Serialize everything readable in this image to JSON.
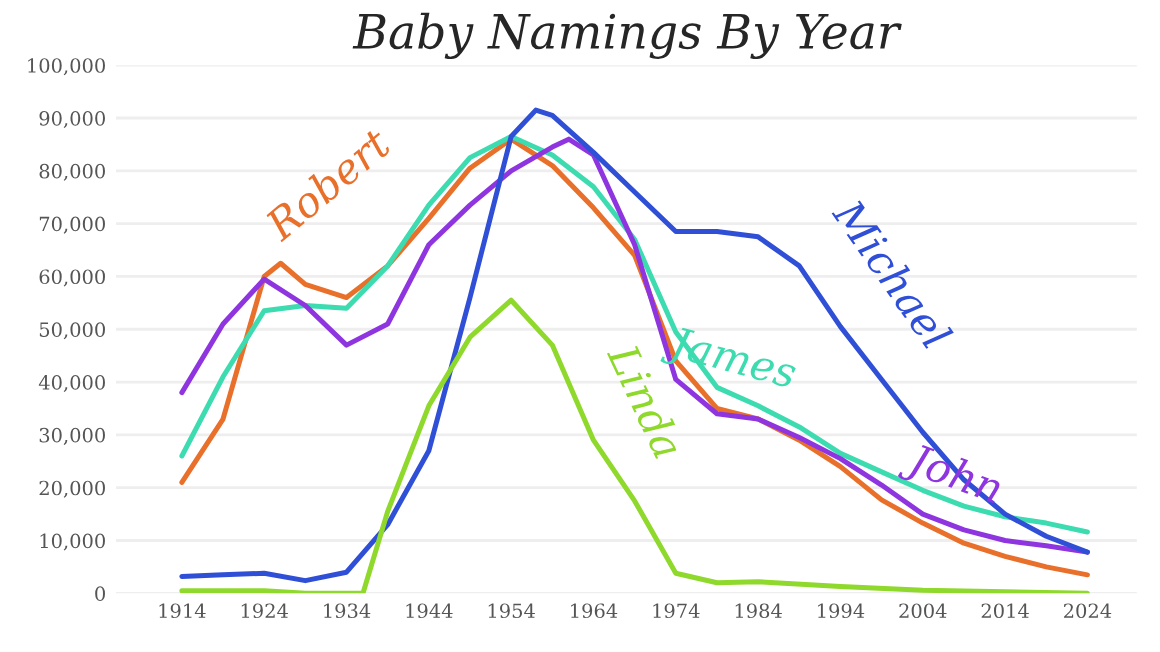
{
  "chart_data": {
    "type": "line",
    "title": "Baby Namings By Year",
    "series": [
      {
        "name": "Robert",
        "color": "#e8702a",
        "x": [
          1914,
          1919,
          1924,
          1926,
          1929,
          1934,
          1939,
          1944,
          1949,
          1954,
          1959,
          1964,
          1969,
          1974,
          1979,
          1984,
          1989,
          1994,
          1999,
          2004,
          2009,
          2014,
          2019,
          2024
        ],
        "values": [
          21000,
          33000,
          60000,
          62500,
          58500,
          56000,
          62000,
          71000,
          80500,
          86000,
          81000,
          73000,
          64000,
          44000,
          35000,
          33000,
          29000,
          24000,
          17700,
          13300,
          9500,
          7000,
          5000,
          3500
        ]
      },
      {
        "name": "James",
        "color": "#3ddbb0",
        "x": [
          1914,
          1919,
          1924,
          1929,
          1934,
          1939,
          1944,
          1949,
          1954,
          1959,
          1964,
          1969,
          1974,
          1979,
          1984,
          1989,
          1994,
          1999,
          2004,
          2009,
          2014,
          2019,
          2024
        ],
        "values": [
          26000,
          41000,
          53500,
          54500,
          54000,
          62000,
          73500,
          82500,
          86500,
          83000,
          77000,
          67000,
          49500,
          39000,
          35500,
          31500,
          26500,
          23000,
          19500,
          16500,
          14500,
          13300,
          11600
        ]
      },
      {
        "name": "John",
        "color": "#8e35e0",
        "x": [
          1914,
          1919,
          1924,
          1929,
          1934,
          1939,
          1944,
          1949,
          1954,
          1959,
          1961,
          1964,
          1969,
          1974,
          1979,
          1984,
          1989,
          1994,
          1999,
          2004,
          2009,
          2014,
          2019,
          2024
        ],
        "values": [
          38000,
          51000,
          59500,
          54500,
          47000,
          51000,
          66000,
          73500,
          80000,
          84500,
          86000,
          83000,
          66000,
          40500,
          34000,
          33000,
          29500,
          25500,
          20500,
          15000,
          12000,
          10000,
          9000,
          7800
        ]
      },
      {
        "name": "Michael",
        "color": "#2f4fd6",
        "x": [
          1914,
          1919,
          1924,
          1929,
          1934,
          1939,
          1944,
          1949,
          1954,
          1957,
          1959,
          1964,
          1969,
          1974,
          1979,
          1984,
          1989,
          1994,
          1999,
          2004,
          2009,
          2014,
          2019,
          2024
        ],
        "values": [
          3200,
          3500,
          3800,
          2400,
          4000,
          13000,
          27000,
          56000,
          86500,
          91500,
          90500,
          83500,
          76000,
          68500,
          68500,
          67500,
          62000,
          50500,
          40500,
          30500,
          21500,
          15000,
          10800,
          7800
        ]
      },
      {
        "name": "Linda",
        "color": "#8fd82c",
        "x": [
          1914,
          1924,
          1929,
          1936,
          1939,
          1944,
          1949,
          1954,
          1959,
          1964,
          1969,
          1974,
          1979,
          1984,
          1994,
          2004,
          2014,
          2024
        ],
        "values": [
          500,
          500,
          0,
          0,
          15500,
          35500,
          48500,
          55500,
          47000,
          29000,
          17500,
          3800,
          2000,
          2200,
          1300,
          600,
          300,
          0
        ]
      }
    ],
    "xlim": [
      1906,
      2030
    ],
    "xticks": [
      1914,
      1924,
      1934,
      1944,
      1954,
      1964,
      1974,
      1984,
      1994,
      2004,
      2014,
      2024
    ],
    "ylim": [
      0,
      100000
    ],
    "yticks": [
      {
        "value": 0,
        "label": "0"
      },
      {
        "value": 10000,
        "label": "10,000"
      },
      {
        "value": 20000,
        "label": "20,000"
      },
      {
        "value": 30000,
        "label": "30,000"
      },
      {
        "value": 40000,
        "label": "40,000"
      },
      {
        "value": 50000,
        "label": "50,000"
      },
      {
        "value": 60000,
        "label": "60,000"
      },
      {
        "value": 70000,
        "label": "70,000"
      },
      {
        "value": 80000,
        "label": "80,000"
      },
      {
        "value": 90000,
        "label": "90,000"
      },
      {
        "value": 100000,
        "label": "100,000"
      }
    ],
    "grid": "y",
    "legend": false,
    "marker": "none",
    "line_style": "solid"
  }
}
